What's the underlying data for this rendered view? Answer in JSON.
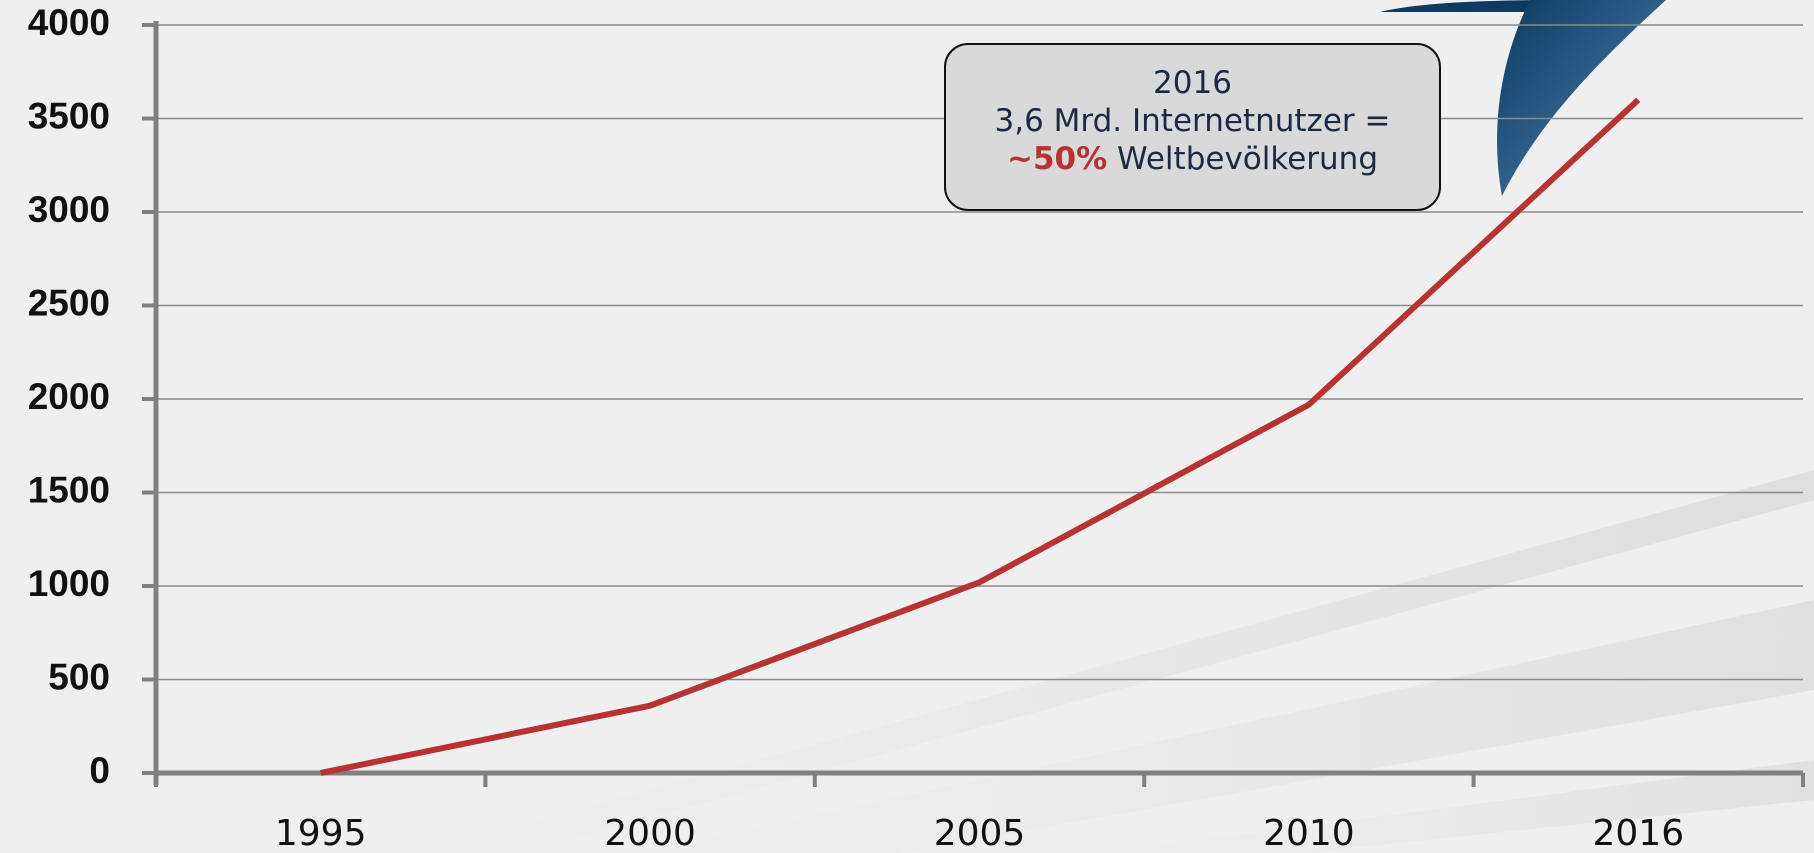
{
  "chart_data": {
    "type": "line",
    "categories": [
      "1995",
      "2000",
      "2005",
      "2010",
      "2016"
    ],
    "values": [
      0,
      360,
      1020,
      1970,
      3600
    ],
    "color": "#b83232",
    "ylim": [
      0,
      4000
    ],
    "yticks": [
      0,
      500,
      1000,
      1500,
      2000,
      2500,
      3000,
      3500,
      4000
    ],
    "grid": true,
    "annotation": {
      "year": "2016",
      "text": "3,6 Mrd. Internetnutzer =",
      "highlight": "~50%",
      "suffix": "Weltbevölkerung"
    }
  }
}
